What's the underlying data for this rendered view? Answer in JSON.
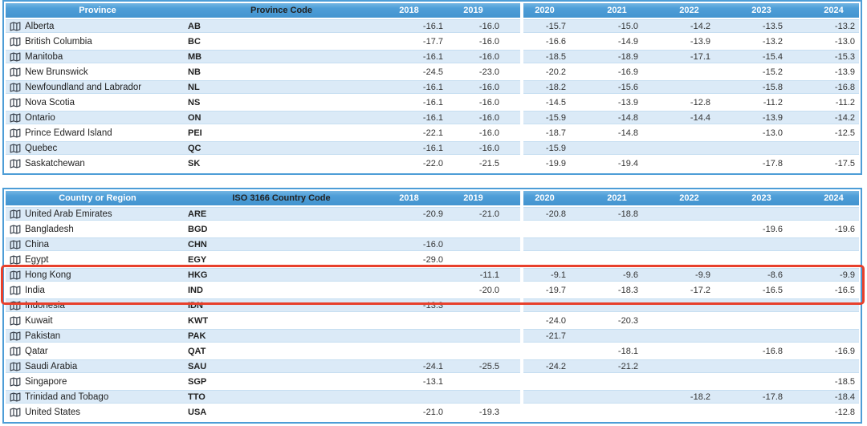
{
  "colors": {
    "header_blue": "#4e9ed8",
    "row_stripe_blue": "#dbeaf7",
    "table_border_blue": "#4d9dd7",
    "highlight_red": "#e8402c",
    "header_text": "#ffffff",
    "cell_text": "#333333"
  },
  "icons": {
    "row_icon": "map-icon"
  },
  "tables": [
    {
      "id": "province-table",
      "name_header": "Province",
      "code_header": "Province Code",
      "years": [
        "2018",
        "2019",
        "2020",
        "2021",
        "2022",
        "2023",
        "2024"
      ],
      "rows": [
        {
          "name": "Alberta",
          "code": "AB",
          "values": [
            "-16.1",
            "-16.0",
            "-15.7",
            "-15.0",
            "-14.2",
            "-13.5",
            "-13.2"
          ]
        },
        {
          "name": "British Columbia",
          "code": "BC",
          "values": [
            "-17.7",
            "-16.0",
            "-16.6",
            "-14.9",
            "-13.9",
            "-13.2",
            "-13.0"
          ]
        },
        {
          "name": "Manitoba",
          "code": "MB",
          "values": [
            "-16.1",
            "-16.0",
            "-18.5",
            "-18.9",
            "-17.1",
            "-15.4",
            "-15.3"
          ]
        },
        {
          "name": "New Brunswick",
          "code": "NB",
          "values": [
            "-24.5",
            "-23.0",
            "-20.2",
            "-16.9",
            "",
            "-15.2",
            "-13.9"
          ]
        },
        {
          "name": "Newfoundland and Labrador",
          "code": "NL",
          "values": [
            "-16.1",
            "-16.0",
            "-18.2",
            "-15.6",
            "",
            "-15.8",
            "-16.8"
          ]
        },
        {
          "name": "Nova Scotia",
          "code": "NS",
          "values": [
            "-16.1",
            "-16.0",
            "-14.5",
            "-13.9",
            "-12.8",
            "-11.2",
            "-11.2"
          ]
        },
        {
          "name": "Ontario",
          "code": "ON",
          "values": [
            "-16.1",
            "-16.0",
            "-15.9",
            "-14.8",
            "-14.4",
            "-13.9",
            "-14.2"
          ]
        },
        {
          "name": "Prince Edward Island",
          "code": "PEI",
          "values": [
            "-22.1",
            "-16.0",
            "-18.7",
            "-14.8",
            "",
            "-13.0",
            "-12.5"
          ]
        },
        {
          "name": "Quebec",
          "code": "QC",
          "values": [
            "-16.1",
            "-16.0",
            "-15.9",
            "",
            "",
            "",
            ""
          ]
        },
        {
          "name": "Saskatchewan",
          "code": "SK",
          "values": [
            "-22.0",
            "-21.5",
            "-19.9",
            "-19.4",
            "",
            "-17.8",
            "-17.5"
          ]
        }
      ]
    },
    {
      "id": "country-table",
      "name_header": "Country or Region",
      "code_header": "ISO 3166 Country Code",
      "years": [
        "2018",
        "2019",
        "2020",
        "2021",
        "2022",
        "2023",
        "2024"
      ],
      "rows": [
        {
          "name": "United Arab Emirates",
          "code": "ARE",
          "values": [
            "-20.9",
            "-21.0",
            "-20.8",
            "-18.8",
            "",
            "",
            ""
          ]
        },
        {
          "name": "Bangladesh",
          "code": "BGD",
          "values": [
            "",
            "",
            "",
            "",
            "",
            "-19.6",
            "-19.6"
          ]
        },
        {
          "name": "China",
          "code": "CHN",
          "values": [
            "-16.0",
            "",
            "",
            "",
            "",
            "",
            ""
          ]
        },
        {
          "name": "Egypt",
          "code": "EGY",
          "values": [
            "-29.0",
            "",
            "",
            "",
            "",
            "",
            ""
          ]
        },
        {
          "name": "Hong Kong",
          "code": "HKG",
          "values": [
            "",
            "-11.1",
            "-9.1",
            "-9.6",
            "-9.9",
            "-8.6",
            "-9.9"
          ]
        },
        {
          "name": "India",
          "code": "IND",
          "values": [
            "",
            "-20.0",
            "-19.7",
            "-18.3",
            "-17.2",
            "-16.5",
            "-16.5"
          ]
        },
        {
          "name": "Indonesia",
          "code": "IDN",
          "values": [
            "-13.3",
            "",
            "",
            "",
            "",
            "",
            ""
          ]
        },
        {
          "name": "Kuwait",
          "code": "KWT",
          "values": [
            "",
            "",
            "-24.0",
            "-20.3",
            "",
            "",
            ""
          ]
        },
        {
          "name": "Pakistan",
          "code": "PAK",
          "values": [
            "",
            "",
            "-21.7",
            "",
            "",
            "",
            ""
          ]
        },
        {
          "name": "Qatar",
          "code": "QAT",
          "values": [
            "",
            "",
            "",
            "-18.1",
            "",
            "-16.8",
            "-16.9"
          ]
        },
        {
          "name": "Saudi Arabia",
          "code": "SAU",
          "values": [
            "-24.1",
            "-25.5",
            "-24.2",
            "-21.2",
            "",
            "",
            ""
          ]
        },
        {
          "name": "Singapore",
          "code": "SGP",
          "values": [
            "-13.1",
            "",
            "",
            "",
            "",
            "",
            "-18.5"
          ]
        },
        {
          "name": "Trinidad and Tobago",
          "code": "TTO",
          "values": [
            "",
            "",
            "",
            "",
            "-18.2",
            "-17.8",
            "-18.4"
          ]
        },
        {
          "name": "United States",
          "code": "USA",
          "values": [
            "-21.0",
            "-19.3",
            "",
            "",
            "",
            "",
            "-12.8"
          ]
        }
      ]
    }
  ],
  "highlight": {
    "table": "country-table",
    "highlighted_rows": [
      "Hong Kong",
      "India"
    ],
    "color": "#e8402c"
  }
}
